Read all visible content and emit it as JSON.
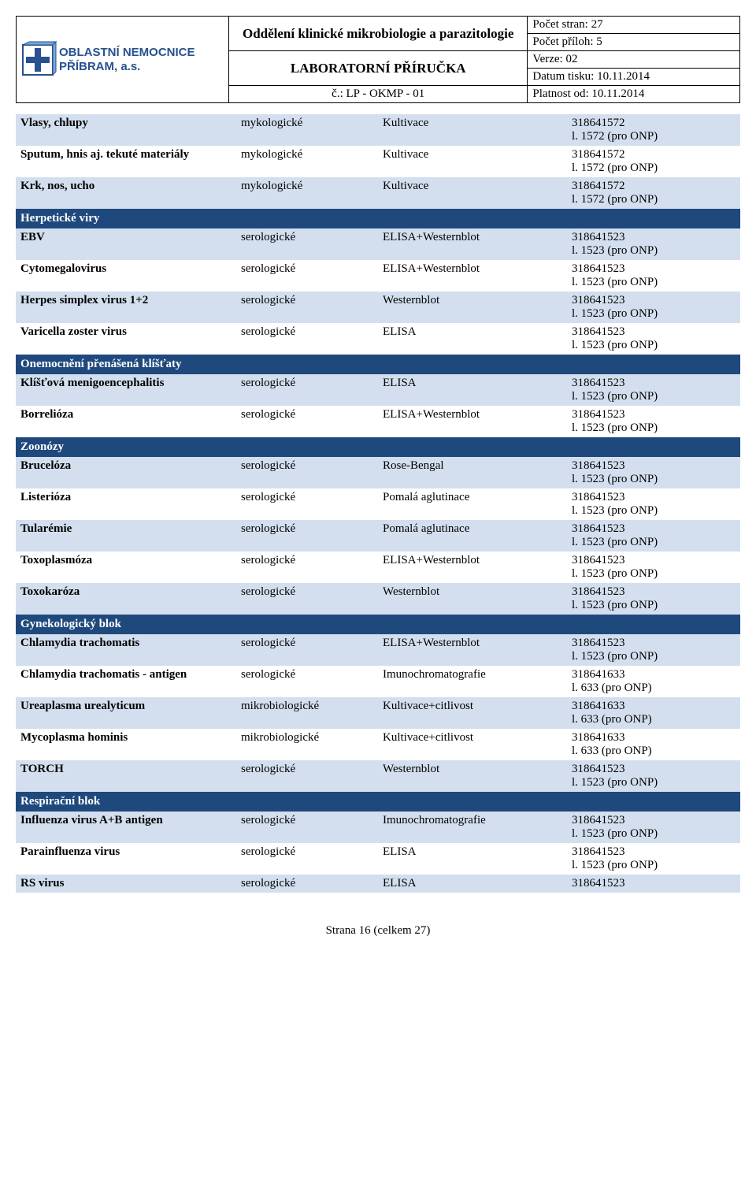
{
  "header": {
    "logo_text1": "OBLASTNÍ NEMOCNICE",
    "logo_text2": "PŘÍBRAM, a.s.",
    "dept": "Oddělení klinické mikrobiologie a parazitologie",
    "doc_name": "LABORATORNÍ PŘÍRUČKA",
    "doc_no": "č.: LP - OKMP - 01",
    "meta1": "Počet stran: 27",
    "meta2": "Počet příloh: 5",
    "meta3": "Verze: 02",
    "meta4": "Datum tisku: 10.11.2014",
    "meta5": "Platnost od: 10.11.2014"
  },
  "colors": {
    "section_bg": "#1f497d",
    "section_fg": "#ffffff",
    "row_even_bg": "#d3dfee",
    "row_odd_bg": "#ffffff"
  },
  "rows": [
    {
      "type": "data",
      "c1": "Vlasy, chlupy",
      "c2": "mykologické",
      "c3": "Kultivace",
      "c4a": "318641572",
      "c4b": "l. 1572 (pro ONP)",
      "bg": "even"
    },
    {
      "type": "data",
      "c1": "Sputum, hnis aj. tekuté materiály",
      "c2": "mykologické",
      "c3": "Kultivace",
      "c4a": "318641572",
      "c4b": "l. 1572 (pro ONP)",
      "bg": "odd"
    },
    {
      "type": "data",
      "c1": "Krk, nos, ucho",
      "c2": "mykologické",
      "c3": "Kultivace",
      "c4a": "318641572",
      "c4b": "l. 1572 (pro ONP)",
      "bg": "even"
    },
    {
      "type": "section",
      "label": "Herpetické viry"
    },
    {
      "type": "data",
      "c1": "EBV",
      "c2": "serologické",
      "c3": "ELISA+Westernblot",
      "c4a": "318641523",
      "c4b": "l. 1523 (pro ONP)",
      "bg": "even"
    },
    {
      "type": "data",
      "c1": "Cytomegalovirus",
      "c2": "serologické",
      "c3": "ELISA+Westernblot",
      "c4a": "318641523",
      "c4b": "l. 1523 (pro ONP)",
      "bg": "odd"
    },
    {
      "type": "data",
      "c1": "Herpes simplex virus 1+2",
      "c2": "serologické",
      "c3": "Westernblot",
      "c4a": "318641523",
      "c4b": "l. 1523 (pro ONP)",
      "bg": "even"
    },
    {
      "type": "data",
      "c1": "Varicella zoster virus",
      "c2": "serologické",
      "c3": "ELISA",
      "c4a": "318641523",
      "c4b": "l. 1523 (pro ONP)",
      "bg": "odd"
    },
    {
      "type": "section",
      "label": "Onemocnění přenášená klíšťaty"
    },
    {
      "type": "data",
      "c1": "Klíšťová menigoencephalitis",
      "c2": "serologické",
      "c3": "ELISA",
      "c4a": "318641523",
      "c4b": "l. 1523 (pro ONP)",
      "bg": "even"
    },
    {
      "type": "data",
      "c1": "Borrelióza",
      "c2": "serologické",
      "c3": "ELISA+Westernblot",
      "c4a": "318641523",
      "c4b": "l. 1523 (pro ONP)",
      "bg": "odd"
    },
    {
      "type": "section",
      "label": "Zoonózy"
    },
    {
      "type": "data",
      "c1": "Brucelóza",
      "c2": "serologické",
      "c3": "Rose-Bengal",
      "c4a": "318641523",
      "c4b": "l. 1523 (pro ONP)",
      "bg": "even"
    },
    {
      "type": "data",
      "c1": "Listerióza",
      "c2": "serologické",
      "c3": "Pomalá aglutinace",
      "c4a": "318641523",
      "c4b": "l. 1523 (pro ONP)",
      "bg": "odd"
    },
    {
      "type": "data",
      "c1": "Tularémie",
      "c2": "serologické",
      "c3": "Pomalá aglutinace",
      "c4a": "318641523",
      "c4b": "l. 1523 (pro ONP)",
      "bg": "even"
    },
    {
      "type": "data",
      "c1": "Toxoplasmóza",
      "c2": "serologické",
      "c3": "ELISA+Westernblot",
      "c4a": "318641523",
      "c4b": "l. 1523 (pro ONP)",
      "bg": "odd"
    },
    {
      "type": "data",
      "c1": "Toxokaróza",
      "c2": "serologické",
      "c3": "Westernblot",
      "c4a": "318641523",
      "c4b": "l. 1523 (pro ONP)",
      "bg": "even"
    },
    {
      "type": "section",
      "label": "Gynekologický blok"
    },
    {
      "type": "data",
      "c1": "Chlamydia trachomatis",
      "c2": "serologické",
      "c3": "ELISA+Westernblot",
      "c4a": "318641523",
      "c4b": "l. 1523 (pro ONP)",
      "bg": "even"
    },
    {
      "type": "data",
      "c1": "Chlamydia trachomatis - antigen",
      "c2": "serologické",
      "c3": "Imunochromatografie",
      "c4a": "318641633",
      "c4b": "l. 633 (pro ONP)",
      "bg": "odd"
    },
    {
      "type": "data",
      "c1": "Ureaplasma urealyticum",
      "c2": "mikrobiologické",
      "c3": "Kultivace+citlivost",
      "c4a": "318641633",
      "c4b": "l. 633 (pro ONP)",
      "bg": "even"
    },
    {
      "type": "data",
      "c1": "Mycoplasma hominis",
      "c2": "mikrobiologické",
      "c3": "Kultivace+citlivost",
      "c4a": "318641633",
      "c4b": "l. 633 (pro ONP)",
      "bg": "odd"
    },
    {
      "type": "data",
      "c1": "TORCH",
      "c2": "serologické",
      "c3": "Westernblot",
      "c4a": "318641523",
      "c4b": "l. 1523 (pro ONP)",
      "bg": "even"
    },
    {
      "type": "section",
      "label": "Respirační blok"
    },
    {
      "type": "data",
      "c1": "Influenza virus A+B antigen",
      "c2": "serologické",
      "c3": "Imunochromatografie",
      "c4a": "318641523",
      "c4b": "l. 1523 (pro ONP)",
      "bg": "even"
    },
    {
      "type": "data",
      "c1": "Parainfluenza virus",
      "c2": "serologické",
      "c3": "ELISA",
      "c4a": "318641523",
      "c4b": "l. 1523 (pro ONP)",
      "bg": "odd"
    },
    {
      "type": "data",
      "c1": "RS virus",
      "c2": "serologické",
      "c3": "ELISA",
      "c4a": "318641523",
      "c4b": "",
      "bg": "even"
    }
  ],
  "footer": "Strana 16 (celkem 27)"
}
